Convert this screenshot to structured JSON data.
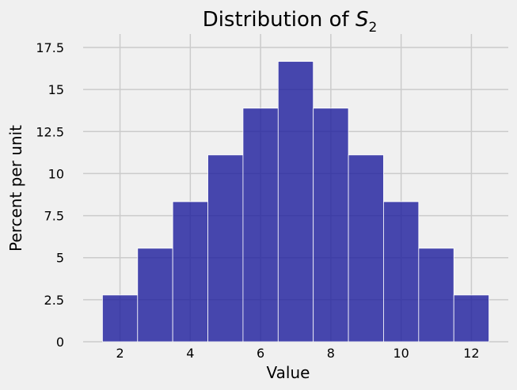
{
  "chart_data": {
    "type": "bar",
    "title_main": "Distribution of ",
    "title_symbol": "S",
    "title_subscript": "2",
    "xlabel": "Value",
    "ylabel": "Percent per unit",
    "x_ticks": [
      2,
      4,
      6,
      8,
      10,
      12
    ],
    "x_tick_labels": [
      "2",
      "4",
      "6",
      "8",
      "10",
      "12"
    ],
    "y_ticks": [
      0,
      2.5,
      5,
      7.5,
      10,
      12.5,
      15,
      17.5
    ],
    "y_tick_labels": [
      "0",
      "2.5",
      "5",
      "7.5",
      "10",
      "12.5",
      "15",
      "17.5"
    ],
    "xlim": [
      0.95,
      13.05
    ],
    "ylim": [
      0,
      18.3
    ],
    "grid": true,
    "bar_color": "#1c1c9c",
    "bins": [
      {
        "left": 1.5,
        "right": 2.5,
        "value": 2.78
      },
      {
        "left": 2.5,
        "right": 3.5,
        "value": 5.56
      },
      {
        "left": 3.5,
        "right": 4.5,
        "value": 8.33
      },
      {
        "left": 4.5,
        "right": 5.5,
        "value": 11.11
      },
      {
        "left": 5.5,
        "right": 6.5,
        "value": 13.89
      },
      {
        "left": 6.5,
        "right": 7.5,
        "value": 16.67
      },
      {
        "left": 7.5,
        "right": 8.5,
        "value": 13.89
      },
      {
        "left": 8.5,
        "right": 9.5,
        "value": 11.11
      },
      {
        "left": 9.5,
        "right": 10.5,
        "value": 8.33
      },
      {
        "left": 10.5,
        "right": 11.5,
        "value": 5.56
      },
      {
        "left": 11.5,
        "right": 12.5,
        "value": 2.78
      }
    ]
  }
}
